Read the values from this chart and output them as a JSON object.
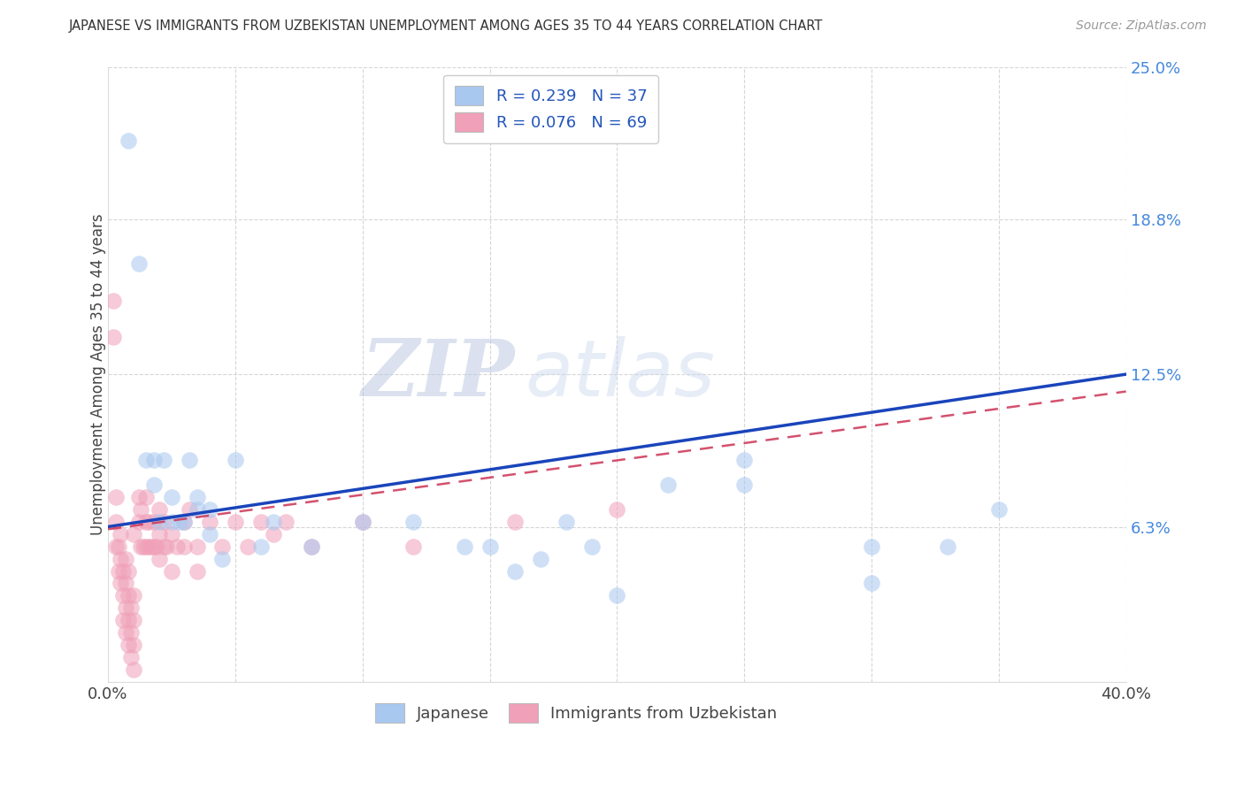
{
  "title": "JAPANESE VS IMMIGRANTS FROM UZBEKISTAN UNEMPLOYMENT AMONG AGES 35 TO 44 YEARS CORRELATION CHART",
  "source": "Source: ZipAtlas.com",
  "ylabel": "Unemployment Among Ages 35 to 44 years",
  "xlim": [
    0,
    0.4
  ],
  "ylim": [
    0,
    0.25
  ],
  "xticks": [
    0.0,
    0.05,
    0.1,
    0.15,
    0.2,
    0.25,
    0.3,
    0.35,
    0.4
  ],
  "ytick_positions": [
    0.0,
    0.063,
    0.125,
    0.188,
    0.25
  ],
  "ytick_labels": [
    "",
    "6.3%",
    "12.5%",
    "18.8%",
    "25.0%"
  ],
  "legend_r1": "R = 0.239",
  "legend_n1": "N = 37",
  "legend_r2": "R = 0.076",
  "legend_n2": "N = 69",
  "color_japanese": "#A8C8F0",
  "color_uzbekistan": "#F0A0B8",
  "color_line_japanese": "#1A44BB",
  "color_line_uzbekistan": "#CC3355",
  "watermark_zip": "ZIP",
  "watermark_atlas": "atlas",
  "japanese_line_x0": 0.0,
  "japanese_line_y0": 0.063,
  "japanese_line_x1": 0.4,
  "japanese_line_y1": 0.125,
  "uzbekistan_line_x0": 0.0,
  "uzbekistan_line_y0": 0.062,
  "uzbekistan_line_x1": 0.4,
  "uzbekistan_line_y1": 0.118,
  "japanese_x": [
    0.008,
    0.012,
    0.015,
    0.018,
    0.018,
    0.02,
    0.022,
    0.025,
    0.025,
    0.028,
    0.03,
    0.032,
    0.035,
    0.035,
    0.04,
    0.04,
    0.045,
    0.05,
    0.06,
    0.065,
    0.08,
    0.1,
    0.12,
    0.14,
    0.15,
    0.16,
    0.17,
    0.18,
    0.19,
    0.2,
    0.22,
    0.25,
    0.3,
    0.33,
    0.35,
    0.25,
    0.3
  ],
  "japanese_y": [
    0.22,
    0.17,
    0.09,
    0.08,
    0.09,
    0.065,
    0.09,
    0.075,
    0.065,
    0.065,
    0.065,
    0.09,
    0.07,
    0.075,
    0.06,
    0.07,
    0.05,
    0.09,
    0.055,
    0.065,
    0.055,
    0.065,
    0.065,
    0.055,
    0.055,
    0.045,
    0.05,
    0.065,
    0.055,
    0.035,
    0.08,
    0.09,
    0.04,
    0.055,
    0.07,
    0.08,
    0.055
  ],
  "uzbekistan_x": [
    0.002,
    0.002,
    0.003,
    0.003,
    0.003,
    0.004,
    0.004,
    0.005,
    0.005,
    0.005,
    0.006,
    0.006,
    0.006,
    0.007,
    0.007,
    0.007,
    0.007,
    0.008,
    0.008,
    0.008,
    0.008,
    0.009,
    0.009,
    0.009,
    0.01,
    0.01,
    0.01,
    0.01,
    0.01,
    0.012,
    0.012,
    0.013,
    0.013,
    0.014,
    0.015,
    0.015,
    0.015,
    0.016,
    0.016,
    0.017,
    0.018,
    0.018,
    0.019,
    0.02,
    0.02,
    0.02,
    0.022,
    0.022,
    0.023,
    0.025,
    0.025,
    0.027,
    0.03,
    0.03,
    0.032,
    0.035,
    0.035,
    0.04,
    0.045,
    0.05,
    0.055,
    0.06,
    0.065,
    0.07,
    0.08,
    0.1,
    0.12,
    0.16,
    0.2
  ],
  "uzbekistan_y": [
    0.14,
    0.155,
    0.055,
    0.065,
    0.075,
    0.045,
    0.055,
    0.04,
    0.05,
    0.06,
    0.025,
    0.035,
    0.045,
    0.02,
    0.03,
    0.04,
    0.05,
    0.015,
    0.025,
    0.035,
    0.045,
    0.01,
    0.02,
    0.03,
    0.005,
    0.015,
    0.025,
    0.035,
    0.06,
    0.065,
    0.075,
    0.055,
    0.07,
    0.055,
    0.055,
    0.065,
    0.075,
    0.055,
    0.065,
    0.055,
    0.055,
    0.065,
    0.055,
    0.05,
    0.06,
    0.07,
    0.055,
    0.065,
    0.055,
    0.045,
    0.06,
    0.055,
    0.055,
    0.065,
    0.07,
    0.045,
    0.055,
    0.065,
    0.055,
    0.065,
    0.055,
    0.065,
    0.06,
    0.065,
    0.055,
    0.065,
    0.055,
    0.065,
    0.07
  ]
}
